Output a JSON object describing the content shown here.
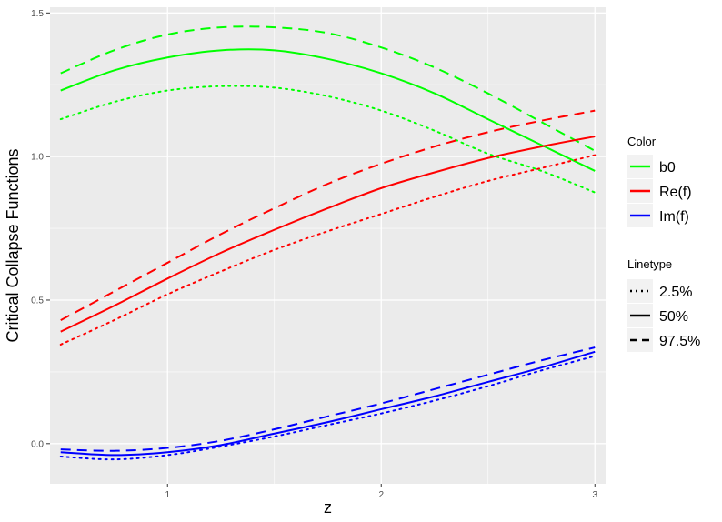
{
  "chart_data": {
    "type": "line",
    "xlabel": "z",
    "ylabel": "Critical Collapse Functions",
    "xlim": [
      0.45,
      3.05
    ],
    "ylim": [
      -0.14,
      1.52
    ],
    "x_ticks": [
      1,
      2,
      3
    ],
    "x_tick_labels": [
      "1",
      "2",
      "3"
    ],
    "y_ticks": [
      0.0,
      0.5,
      1.0,
      1.5
    ],
    "y_tick_labels": [
      "0.0",
      "0.5",
      "1.0",
      "1.5"
    ],
    "grid": true,
    "background": "#ebebeb",
    "x": [
      0.5,
      0.75,
      1.0,
      1.25,
      1.5,
      1.75,
      2.0,
      2.25,
      2.5,
      2.75,
      3.0
    ],
    "series": [
      {
        "color_key": "b0",
        "linetype_key": "2.5%",
        "values": [
          1.13,
          1.19,
          1.23,
          1.245,
          1.24,
          1.21,
          1.16,
          1.09,
          1.01,
          0.95,
          0.875
        ]
      },
      {
        "color_key": "b0",
        "linetype_key": "50%",
        "values": [
          1.23,
          1.3,
          1.345,
          1.37,
          1.37,
          1.34,
          1.29,
          1.22,
          1.13,
          1.04,
          0.95
        ]
      },
      {
        "color_key": "b0",
        "linetype_key": "97.5%",
        "values": [
          1.29,
          1.37,
          1.425,
          1.45,
          1.45,
          1.43,
          1.38,
          1.31,
          1.22,
          1.12,
          1.02
        ]
      },
      {
        "color_key": "Re(f)",
        "linetype_key": "2.5%",
        "values": [
          0.345,
          0.43,
          0.52,
          0.6,
          0.675,
          0.74,
          0.8,
          0.86,
          0.915,
          0.96,
          1.005
        ]
      },
      {
        "color_key": "Re(f)",
        "linetype_key": "50%",
        "values": [
          0.39,
          0.48,
          0.575,
          0.665,
          0.745,
          0.82,
          0.89,
          0.945,
          0.995,
          1.035,
          1.07
        ]
      },
      {
        "color_key": "Re(f)",
        "linetype_key": "97.5%",
        "values": [
          0.43,
          0.53,
          0.63,
          0.73,
          0.82,
          0.905,
          0.975,
          1.035,
          1.085,
          1.125,
          1.16
        ]
      },
      {
        "color_key": "Im(f)",
        "linetype_key": "2.5%",
        "values": [
          -0.045,
          -0.055,
          -0.04,
          -0.01,
          0.025,
          0.065,
          0.105,
          0.15,
          0.2,
          0.255,
          0.305
        ]
      },
      {
        "color_key": "Im(f)",
        "linetype_key": "50%",
        "values": [
          -0.03,
          -0.04,
          -0.03,
          -0.005,
          0.035,
          0.075,
          0.12,
          0.165,
          0.215,
          0.265,
          0.32
        ]
      },
      {
        "color_key": "Im(f)",
        "linetype_key": "97.5%",
        "values": [
          -0.02,
          -0.025,
          -0.015,
          0.01,
          0.05,
          0.095,
          0.14,
          0.19,
          0.24,
          0.29,
          0.335
        ]
      }
    ],
    "legend": {
      "placement": "right",
      "color": {
        "title": "Color",
        "entries": [
          {
            "label": "b0",
            "color": "#00ff00"
          },
          {
            "label": "Re(f)",
            "color": "#ff0000"
          },
          {
            "label": "Im(f)",
            "color": "#0000ff"
          }
        ]
      },
      "linetype": {
        "title": "Linetype",
        "entries": [
          {
            "label": "2.5%",
            "dash": "dotted"
          },
          {
            "label": "50%",
            "dash": "solid"
          },
          {
            "label": "97.5%",
            "dash": "dashed"
          }
        ]
      }
    }
  }
}
